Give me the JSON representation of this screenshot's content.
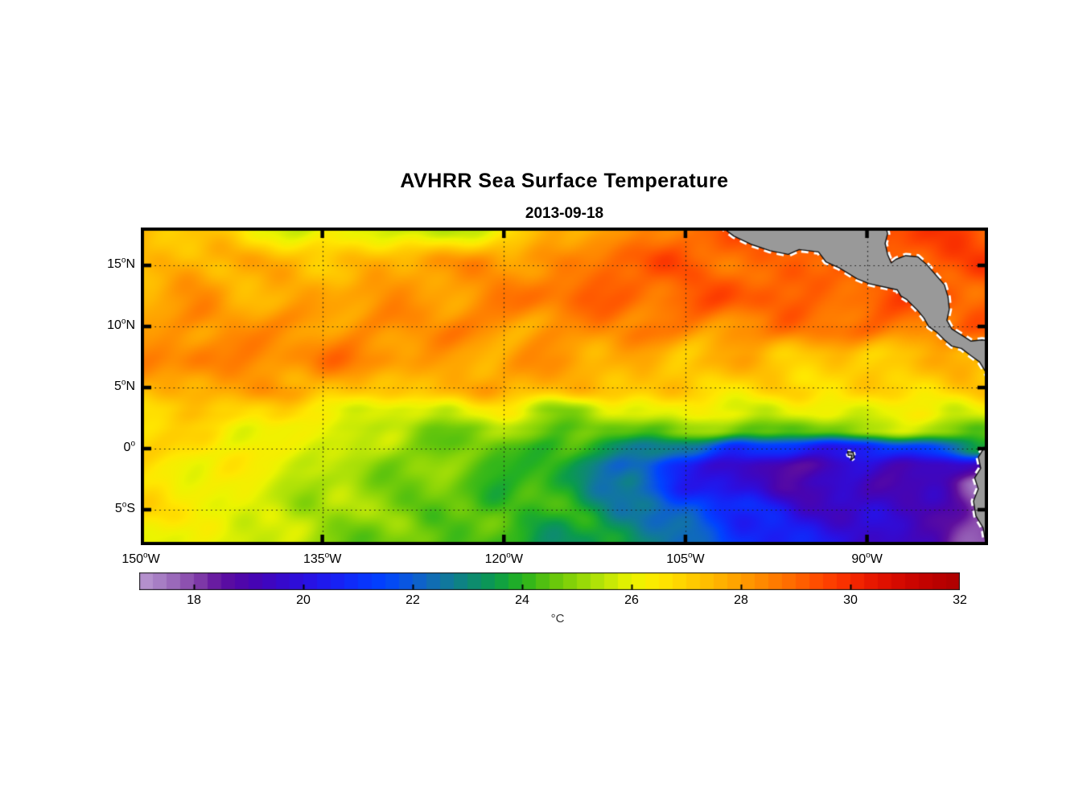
{
  "figure": {
    "title": "AVHRR Sea Surface Temperature",
    "subtitle": "2013-09-18"
  },
  "map": {
    "lon_min": -150,
    "lon_max": -80,
    "lat_min": -7.9,
    "lat_max": 18.1,
    "deg_glyph": "o",
    "x_ticks": [
      {
        "num": "150",
        "hem": "W",
        "lon": -150
      },
      {
        "num": "135",
        "hem": "W",
        "lon": -135
      },
      {
        "num": "120",
        "hem": "W",
        "lon": -120
      },
      {
        "num": "105",
        "hem": "W",
        "lon": -105
      },
      {
        "num": "90",
        "hem": "W",
        "lon": -90
      }
    ],
    "y_ticks": [
      {
        "num": "15",
        "hem": "N",
        "lat": 15
      },
      {
        "num": "10",
        "hem": "N",
        "lat": 10
      },
      {
        "num": "5",
        "hem": "N",
        "lat": 5
      },
      {
        "num": "0",
        "hem": "",
        "lat": 0
      },
      {
        "num": "5",
        "hem": "S",
        "lat": -5
      }
    ],
    "land_color": "#999999",
    "coast_color": "#111111",
    "coast_halo": "#ffffff",
    "grid_color": "#1a1a1a",
    "frame_color": "#000000"
  },
  "colorbar": {
    "min": 17,
    "max": 32,
    "ticks": [
      18,
      20,
      22,
      24,
      26,
      28,
      30,
      32
    ],
    "unit": "°C",
    "segments": 60,
    "stops": [
      [
        17.0,
        "#bb9ad2"
      ],
      [
        17.5,
        "#a175c0"
      ],
      [
        18.0,
        "#8746ab"
      ],
      [
        18.5,
        "#5f0f9e"
      ],
      [
        19.0,
        "#4a04ae"
      ],
      [
        19.5,
        "#3a07c6"
      ],
      [
        20.0,
        "#2b0fe0"
      ],
      [
        20.5,
        "#1b1df2"
      ],
      [
        21.0,
        "#0b30fc"
      ],
      [
        21.5,
        "#0044ff"
      ],
      [
        22.0,
        "#0d5dd6"
      ],
      [
        22.5,
        "#1173a8"
      ],
      [
        23.0,
        "#0e8878"
      ],
      [
        23.5,
        "#0a9b4c"
      ],
      [
        24.0,
        "#27b31e"
      ],
      [
        24.5,
        "#5ec40d"
      ],
      [
        25.0,
        "#8ed607"
      ],
      [
        25.5,
        "#bce607"
      ],
      [
        26.0,
        "#ecf400"
      ],
      [
        26.5,
        "#ffe800"
      ],
      [
        27.0,
        "#ffd000"
      ],
      [
        27.5,
        "#ffb800"
      ],
      [
        28.0,
        "#ff9e00"
      ],
      [
        28.5,
        "#ff8300"
      ],
      [
        29.0,
        "#ff6600"
      ],
      [
        29.5,
        "#ff4700"
      ],
      [
        30.0,
        "#f72a00"
      ],
      [
        30.5,
        "#e41300"
      ],
      [
        31.0,
        "#d00700"
      ],
      [
        31.5,
        "#be0100"
      ],
      [
        32.0,
        "#ad0000"
      ]
    ]
  },
  "chart_data": {
    "type": "heatmap",
    "title": "AVHRR Sea Surface Temperature",
    "subtitle": "2013-09-18",
    "units": "°C",
    "value_range": [
      17,
      32
    ],
    "lon_ticks": [
      -150,
      -135,
      -120,
      -105,
      -90
    ],
    "lat_ticks": [
      15,
      10,
      5,
      0,
      -5
    ],
    "lons": [
      -150,
      -145,
      -140,
      -135,
      -130,
      -125,
      -120,
      -115,
      -110,
      -105,
      -100,
      -95,
      -90,
      -85,
      -80
    ],
    "lats": [
      18,
      15,
      12.5,
      10,
      7.5,
      5,
      3,
      1.5,
      0,
      -1.5,
      -3,
      -5,
      -8
    ],
    "sst": [
      [
        27.0,
        27.2,
        26.3,
        25.7,
        25.8,
        25.4,
        26.4,
        27.6,
        28.3,
        28.8,
        29.2,
        29.4,
        29.5,
        29.5,
        29.4
      ],
      [
        27.5,
        27.8,
        27.5,
        27.4,
        27.8,
        28.0,
        28.2,
        28.5,
        29.0,
        29.3,
        28.9,
        29.0,
        29.3,
        29.4,
        29.5
      ],
      [
        27.6,
        28.0,
        27.8,
        27.8,
        28.0,
        28.2,
        28.5,
        28.8,
        29.2,
        29.0,
        29.3,
        29.0,
        29.2,
        29.3,
        29.0
      ],
      [
        28.0,
        28.3,
        28.0,
        28.0,
        28.3,
        28.3,
        28.0,
        28.3,
        28.5,
        28.3,
        28.5,
        28.8,
        28.6,
        28.8,
        29.0
      ],
      [
        28.3,
        28.6,
        28.5,
        28.7,
        28.3,
        28.0,
        28.0,
        28.0,
        27.8,
        27.5,
        27.5,
        27.3,
        27.2,
        27.3,
        27.8
      ],
      [
        27.5,
        27.8,
        28.0,
        27.5,
        27.2,
        27.5,
        27.8,
        27.5,
        27.3,
        27.0,
        26.8,
        26.8,
        26.8,
        27.0,
        27.0
      ],
      [
        27.0,
        27.2,
        26.8,
        26.4,
        25.8,
        25.6,
        26.4,
        25.0,
        25.8,
        26.2,
        26.0,
        25.8,
        26.0,
        26.2,
        26.0
      ],
      [
        26.8,
        26.6,
        26.3,
        26.0,
        25.3,
        24.9,
        25.2,
        24.4,
        24.6,
        25.0,
        24.6,
        24.4,
        25.6,
        25.2,
        24.6
      ],
      [
        26.8,
        26.5,
        26.2,
        25.8,
        25.2,
        24.8,
        24.3,
        24.0,
        23.2,
        22.3,
        20.8,
        20.6,
        20.3,
        21.5,
        23.3
      ],
      [
        26.7,
        26.4,
        26.0,
        25.5,
        25.1,
        24.7,
        24.2,
        23.9,
        22.0,
        20.6,
        19.4,
        18.7,
        19.6,
        19.5,
        19.0
      ],
      [
        26.6,
        26.3,
        25.9,
        25.3,
        25.0,
        24.6,
        24.2,
        23.8,
        22.4,
        20.8,
        19.6,
        19.2,
        19.4,
        19.2,
        17.6
      ],
      [
        26.6,
        26.2,
        25.8,
        25.2,
        24.9,
        24.6,
        24.3,
        23.8,
        23.0,
        21.8,
        20.6,
        19.8,
        19.6,
        19.2,
        17.5
      ],
      [
        26.4,
        26.0,
        25.6,
        25.1,
        24.7,
        24.4,
        24.0,
        23.6,
        23.3,
        22.3,
        21.3,
        20.3,
        19.7,
        19.3,
        17.6
      ]
    ]
  },
  "land": {
    "central_america": [
      [
        -102.2,
        18.3
      ],
      [
        -101.0,
        17.4
      ],
      [
        -99.5,
        16.7
      ],
      [
        -98.0,
        16.2
      ],
      [
        -96.5,
        15.9
      ],
      [
        -95.6,
        16.3
      ],
      [
        -94.8,
        16.2
      ],
      [
        -94.0,
        16.1
      ],
      [
        -93.4,
        15.3
      ],
      [
        -92.3,
        14.8
      ],
      [
        -90.8,
        13.9
      ],
      [
        -89.8,
        13.5
      ],
      [
        -88.4,
        13.2
      ],
      [
        -87.5,
        13.0
      ],
      [
        -87.2,
        12.5
      ],
      [
        -86.7,
        12.2
      ],
      [
        -86.2,
        11.7
      ],
      [
        -85.8,
        11.3
      ],
      [
        -85.3,
        10.7
      ],
      [
        -84.9,
        10.0
      ],
      [
        -84.2,
        9.5
      ],
      [
        -83.6,
        8.9
      ],
      [
        -83.0,
        8.4
      ],
      [
        -82.2,
        8.2
      ],
      [
        -81.4,
        7.6
      ],
      [
        -80.7,
        7.1
      ],
      [
        -80.2,
        6.3
      ],
      [
        -79.8,
        5.4
      ],
      [
        -79.7,
        3.6
      ],
      [
        -79.7,
        8.8
      ],
      [
        -80.5,
        8.9
      ],
      [
        -81.4,
        8.8
      ],
      [
        -82.2,
        9.3
      ],
      [
        -83.0,
        9.8
      ],
      [
        -83.4,
        10.5
      ],
      [
        -83.2,
        11.4
      ],
      [
        -83.3,
        12.4
      ],
      [
        -83.6,
        13.4
      ],
      [
        -84.3,
        14.2
      ],
      [
        -85.0,
        15.0
      ],
      [
        -85.8,
        15.7
      ],
      [
        -86.8,
        15.8
      ],
      [
        -87.6,
        15.5
      ],
      [
        -88.0,
        15.2
      ],
      [
        -88.3,
        15.9
      ],
      [
        -88.5,
        16.8
      ],
      [
        -88.3,
        17.6
      ],
      [
        -88.5,
        18.4
      ],
      [
        -102.2,
        18.4
      ]
    ],
    "south_america": [
      [
        -79.6,
        0.6
      ],
      [
        -80.3,
        0.1
      ],
      [
        -80.8,
        -0.7
      ],
      [
        -80.6,
        -1.6
      ],
      [
        -81.1,
        -2.4
      ],
      [
        -80.8,
        -3.3
      ],
      [
        -81.2,
        -4.3
      ],
      [
        -81.0,
        -5.5
      ],
      [
        -80.4,
        -6.5
      ],
      [
        -80.1,
        -8.2
      ],
      [
        -79.5,
        -8.2
      ],
      [
        -79.5,
        0.6
      ]
    ],
    "galapagos": [
      [
        -91.6,
        -0.25
      ],
      [
        -91.15,
        -0.3
      ],
      [
        -91.05,
        -0.7
      ],
      [
        -91.35,
        -0.95
      ],
      [
        -91.25,
        -0.55
      ],
      [
        -91.55,
        -0.55
      ]
    ]
  }
}
